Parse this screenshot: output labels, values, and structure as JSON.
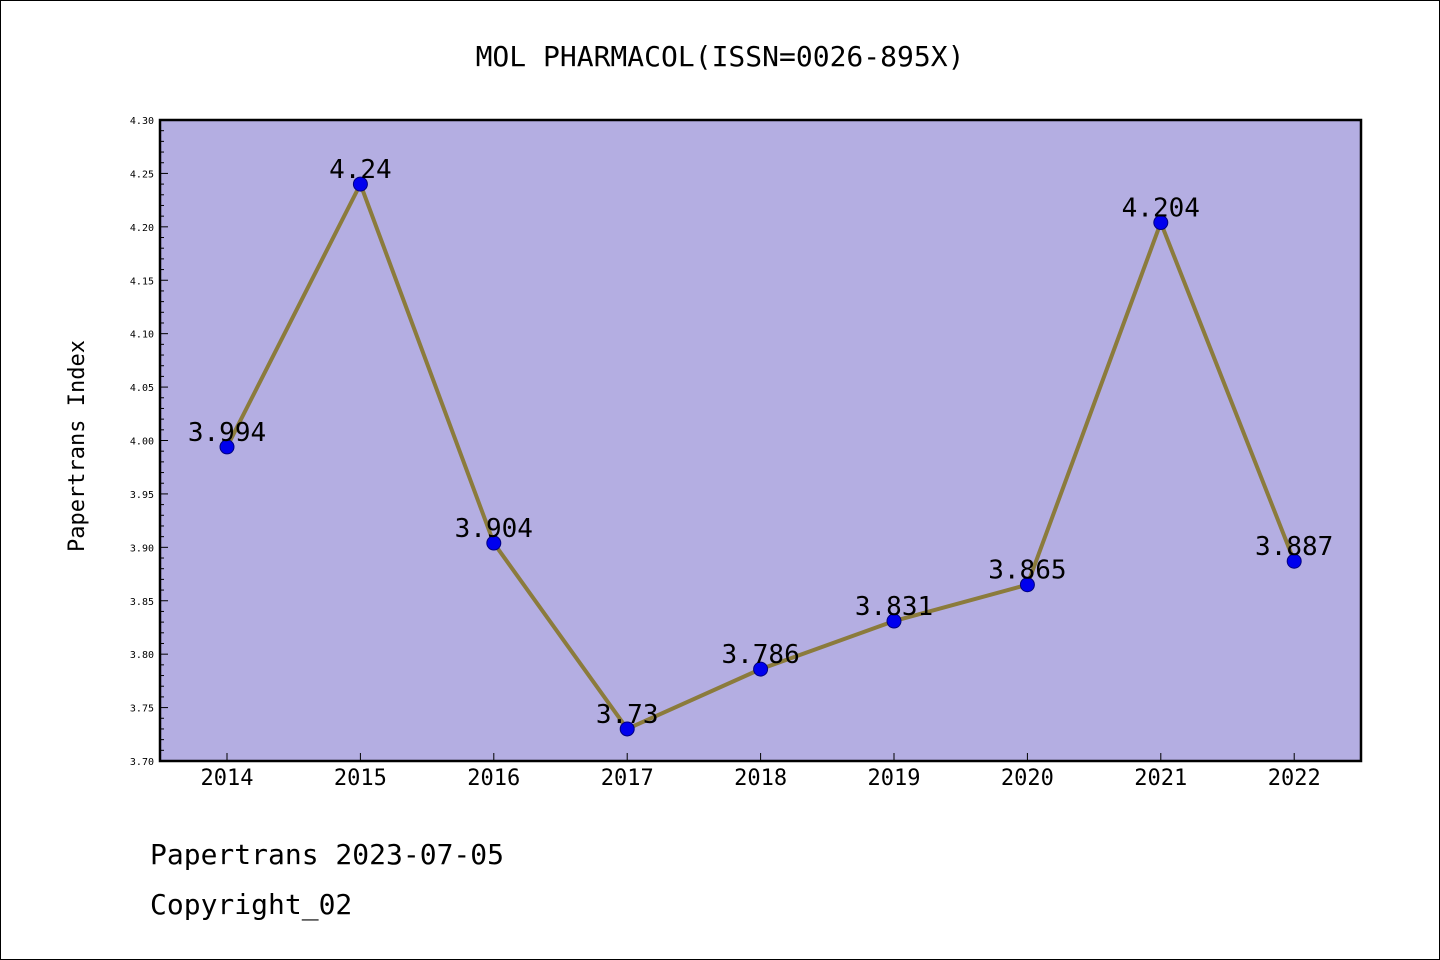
{
  "chart_data": {
    "type": "line",
    "title": "MOL PHARMACOL(ISSN=0026-895X)",
    "xlabel": "",
    "ylabel": "Papertrans Index",
    "categories": [
      "2014",
      "2015",
      "2016",
      "2017",
      "2018",
      "2019",
      "2020",
      "2021",
      "2022"
    ],
    "series": [
      {
        "values": [
          3.994,
          4.24,
          3.904,
          3.73,
          3.786,
          3.831,
          3.865,
          4.204,
          3.887
        ],
        "labels": [
          "3.994",
          "4.24",
          "3.904",
          "3.73",
          "3.786",
          "3.831",
          "3.865",
          "4.204",
          "3.887"
        ]
      }
    ],
    "ylim": [
      3.7,
      4.3
    ],
    "yticks": [
      "3.70",
      "3.75",
      "3.80",
      "3.85",
      "3.90",
      "3.95",
      "4.00",
      "4.05",
      "4.10",
      "4.15",
      "4.20",
      "4.25",
      "4.30"
    ],
    "grid": false,
    "legend": "none",
    "colors": {
      "plot_background": "#b4aee2",
      "line": "#8b7b3c",
      "marker": "#0000ee",
      "marker_edge": "#000080"
    }
  },
  "footer": {
    "line1": "Papertrans 2023-07-05",
    "line2": "Copyright_02"
  }
}
